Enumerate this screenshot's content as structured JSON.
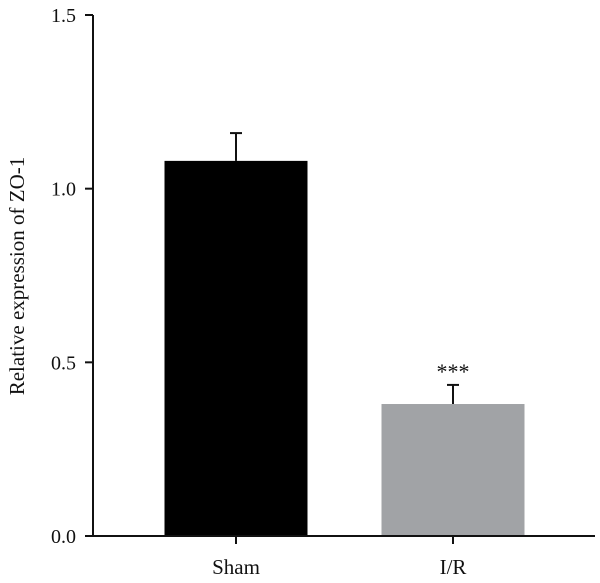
{
  "chart_data": {
    "type": "bar",
    "categories": [
      "Sham",
      "I/R"
    ],
    "values": [
      1.08,
      0.38
    ],
    "errors": [
      0.08,
      0.055
    ],
    "colors": [
      "#000000",
      "#a1a3a6"
    ],
    "annotations": [
      "",
      "***"
    ],
    "xlabel": "",
    "ylabel": "Relative expression of ZO-1",
    "ylim": [
      0,
      1.5
    ],
    "yticks": [
      0.0,
      0.5,
      1.0,
      1.5
    ],
    "ytick_labels": [
      "0.0",
      "0.5",
      "1.0",
      "1.5"
    ],
    "grid": false
  }
}
